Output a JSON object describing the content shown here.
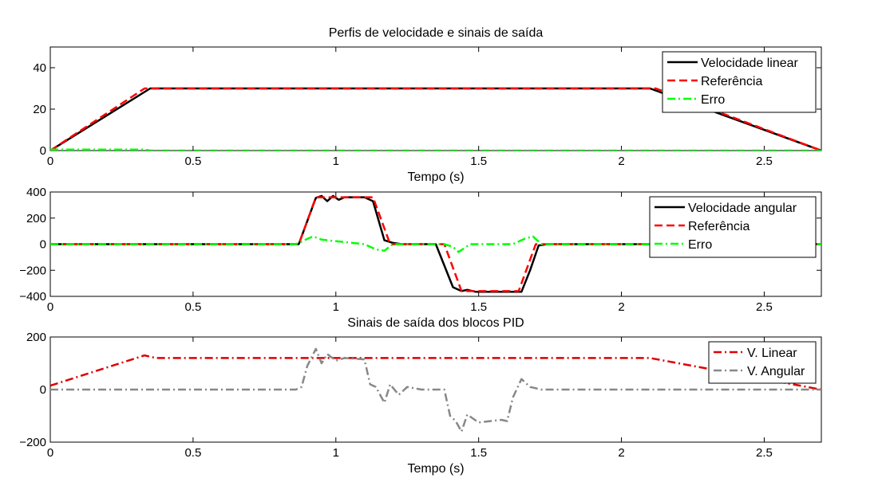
{
  "chart_data": [
    {
      "type": "line",
      "title": "Perfis de velocidade e sinais de saída",
      "xlabel": "Tempo (s)",
      "ylabel": "",
      "xlim": [
        0,
        2.7
      ],
      "ylim": [
        0,
        50
      ],
      "xticks": [
        0,
        0.5,
        1,
        1.5,
        2,
        2.5
      ],
      "xtick_labels": [
        "0",
        "0.5",
        "1",
        "1.5",
        "2",
        "2.5"
      ],
      "yticks": [
        0,
        20,
        40
      ],
      "ytick_labels": [
        "0",
        "20",
        "40"
      ],
      "grid": false,
      "legend_position": "top-right",
      "series": [
        {
          "name": "Velocidade linear",
          "color": "#000000",
          "style": "solid",
          "x": [
            0,
            0.35,
            2.1,
            2.7
          ],
          "y": [
            0,
            30,
            30,
            0
          ]
        },
        {
          "name": "Referência",
          "color": "#ff0000",
          "style": "dashed",
          "x": [
            0,
            0.33,
            2.12,
            2.7
          ],
          "y": [
            0,
            30,
            30,
            0
          ]
        },
        {
          "name": "Erro",
          "color": "#00ff00",
          "style": "dashdot",
          "x": [
            0,
            0.33,
            0.35,
            2.1,
            2.12,
            2.7
          ],
          "y": [
            0.5,
            0.5,
            0,
            0,
            0,
            0
          ]
        }
      ]
    },
    {
      "type": "line",
      "title": "",
      "xlabel": "",
      "ylabel": "",
      "xlim": [
        0,
        2.7
      ],
      "ylim": [
        -400,
        400
      ],
      "xticks": [
        0,
        0.5,
        1,
        1.5,
        2,
        2.5
      ],
      "xtick_labels": [
        "0",
        "0.5",
        "1",
        "1.5",
        "2",
        "2.5"
      ],
      "yticks": [
        -400,
        -200,
        0,
        200,
        400
      ],
      "ytick_labels": [
        "−400",
        "−200",
        "0",
        "200",
        "400"
      ],
      "grid": false,
      "legend_position": "top-right",
      "series": [
        {
          "name": "Velocidade angular",
          "color": "#000000",
          "style": "solid",
          "x": [
            0,
            0.87,
            0.93,
            0.95,
            0.97,
            0.99,
            1.01,
            1.03,
            1.1,
            1.13,
            1.17,
            1.2,
            1.23,
            1.35,
            1.41,
            1.44,
            1.46,
            1.49,
            1.65,
            1.68,
            1.71,
            1.74,
            2.7
          ],
          "y": [
            0,
            0,
            355,
            370,
            330,
            370,
            340,
            360,
            360,
            330,
            30,
            10,
            0,
            0,
            -330,
            -360,
            -350,
            -365,
            -365,
            -200,
            -10,
            0,
            0
          ]
        },
        {
          "name": "Referência",
          "color": "#ff0000",
          "style": "dashed",
          "x": [
            0,
            0.87,
            0.93,
            1.13,
            1.19,
            1.38,
            1.44,
            1.64,
            1.7,
            2.7
          ],
          "y": [
            0,
            0,
            360,
            360,
            0,
            0,
            -360,
            -360,
            0,
            0
          ]
        },
        {
          "name": "Erro",
          "color": "#00ff00",
          "style": "dashdot",
          "x": [
            0,
            0.86,
            0.9,
            0.92,
            0.95,
            1.1,
            1.14,
            1.17,
            1.2,
            1.38,
            1.41,
            1.43,
            1.47,
            1.62,
            1.66,
            1.69,
            1.72,
            2.7
          ],
          "y": [
            0,
            0,
            40,
            60,
            35,
            0,
            -40,
            -50,
            0,
            0,
            -20,
            -60,
            0,
            0,
            40,
            60,
            0,
            0
          ]
        }
      ]
    },
    {
      "type": "line",
      "title": "Sinais de saída dos blocos PID",
      "xlabel": "Tempo (s)",
      "ylabel": "",
      "xlim": [
        0,
        2.7
      ],
      "ylim": [
        -200,
        200
      ],
      "xticks": [
        0,
        0.5,
        1,
        1.5,
        2,
        2.5
      ],
      "xtick_labels": [
        "0",
        "0.5",
        "1",
        "1.5",
        "2",
        "2.5"
      ],
      "yticks": [
        -200,
        0,
        200
      ],
      "ytick_labels": [
        "−200",
        "0",
        "200"
      ],
      "grid": false,
      "legend_position": "top-right",
      "series": [
        {
          "name": "V. Linear",
          "color": "#dd0000",
          "style": "dashdot",
          "x": [
            0,
            0.33,
            0.37,
            2.1,
            2.7
          ],
          "y": [
            15,
            130,
            120,
            120,
            0
          ]
        },
        {
          "name": "V. Angular",
          "color": "#888888",
          "style": "dashdot",
          "x": [
            0,
            0.86,
            0.88,
            0.9,
            0.93,
            0.95,
            0.97,
            1.0,
            1.03,
            1.1,
            1.12,
            1.14,
            1.17,
            1.19,
            1.22,
            1.25,
            1.3,
            1.38,
            1.4,
            1.42,
            1.44,
            1.46,
            1.5,
            1.58,
            1.6,
            1.62,
            1.65,
            1.68,
            1.72,
            2.7
          ],
          "y": [
            0,
            0,
            10,
            90,
            155,
            100,
            135,
            110,
            120,
            115,
            20,
            10,
            -50,
            20,
            -20,
            10,
            0,
            0,
            -100,
            -120,
            -160,
            -95,
            -125,
            -115,
            -120,
            -30,
            40,
            10,
            0,
            0
          ]
        }
      ]
    }
  ]
}
